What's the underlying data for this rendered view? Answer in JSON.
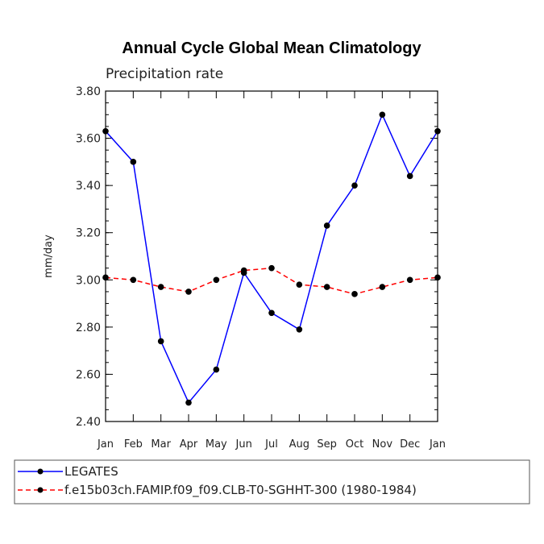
{
  "chart_data": {
    "type": "line",
    "title": "Annual Cycle Global Mean Climatology",
    "subtitle": "Precipitation rate",
    "ylabel": "mm/day",
    "xlabel": "",
    "ylim": [
      2.4,
      3.8
    ],
    "yticks": [
      "2.40",
      "2.60",
      "2.80",
      "3.00",
      "3.20",
      "3.40",
      "3.60",
      "3.80"
    ],
    "categories": [
      "Jan",
      "Feb",
      "Mar",
      "Apr",
      "May",
      "Jun",
      "Jul",
      "Aug",
      "Sep",
      "Oct",
      "Nov",
      "Dec",
      "Jan"
    ],
    "series": [
      {
        "name": "LEGATES",
        "color": "#0000ff",
        "dash": "solid",
        "values": [
          3.63,
          3.5,
          2.74,
          2.48,
          2.62,
          3.03,
          2.86,
          2.79,
          3.23,
          3.4,
          3.7,
          3.44,
          3.63
        ]
      },
      {
        "name": "f.e15b03ch.FAMIP.f09_f09.CLB-T0-SGHHT-300 (1980-1984)",
        "color": "#ff0000",
        "dash": "dashed",
        "values": [
          3.01,
          3.0,
          2.97,
          2.95,
          3.0,
          3.04,
          3.05,
          2.98,
          2.97,
          2.94,
          2.97,
          3.0,
          3.01
        ]
      }
    ],
    "grid": false,
    "legend_position": "bottom"
  }
}
